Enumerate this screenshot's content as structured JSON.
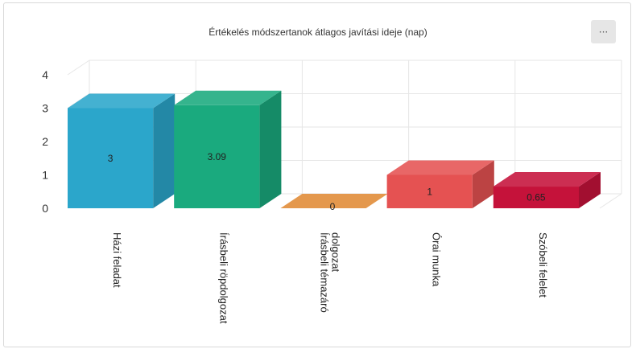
{
  "chart_data": {
    "type": "bar",
    "title": "Értékelés módszertanok átlagos javítási ideje (nap)",
    "categories": [
      "Házi feladat",
      "Írásbeli röpdolgozat",
      "Írásbeli témazáró dolgozat",
      "Órai munka",
      "Szóbeli felelet"
    ],
    "category_label_lines": [
      [
        "Házi feladat"
      ],
      [
        "Írásbeli röpdolgozat"
      ],
      [
        "Írásbeli témazáró",
        "dolgozat"
      ],
      [
        "Órai munka"
      ],
      [
        "Szóbeli felelet"
      ]
    ],
    "values": [
      3,
      3.09,
      0,
      1,
      0.65
    ],
    "value_labels": [
      "3",
      "3.09",
      "0",
      "1",
      "0.65"
    ],
    "y_ticks": [
      0,
      1,
      2,
      3,
      4
    ],
    "ylim": [
      0,
      4
    ],
    "grid": true,
    "style": "3d-columns",
    "colors": [
      "#2ba6cb",
      "#1aaa7e",
      "#e08a35",
      "#e55252",
      "#c5123a"
    ]
  },
  "menu": {
    "label": "···"
  }
}
